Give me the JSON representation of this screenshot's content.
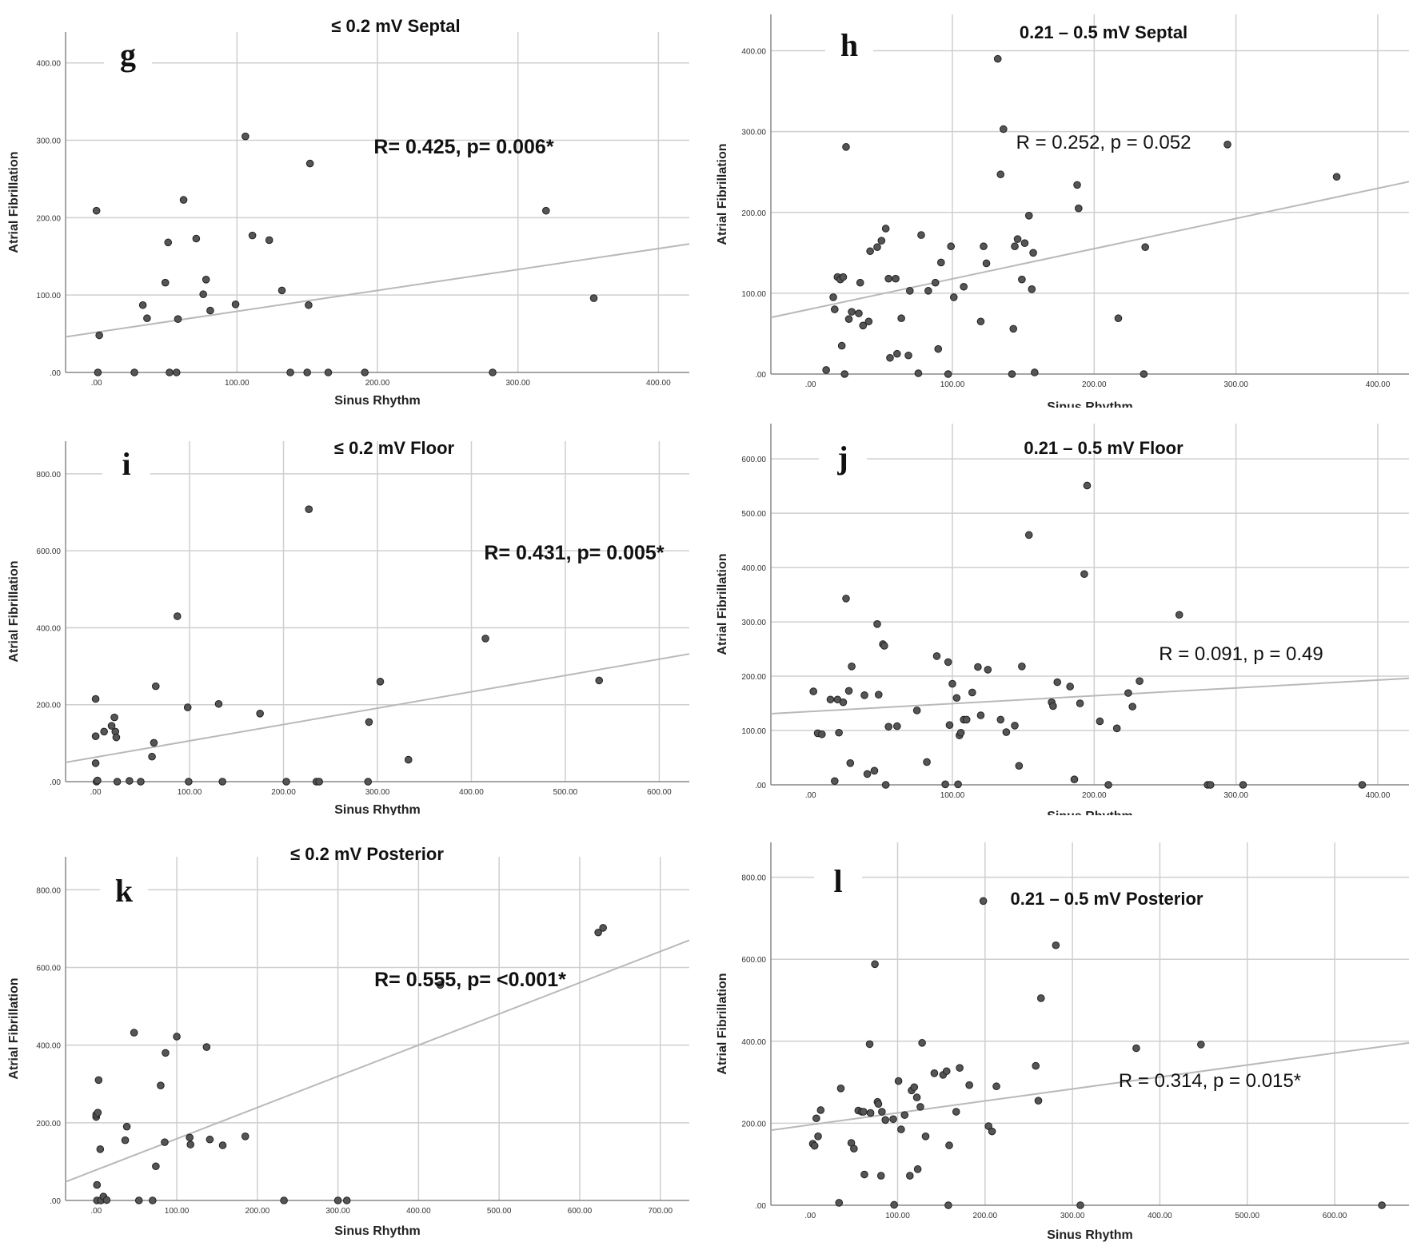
{
  "chart_data": [
    {
      "type": "scatter",
      "panel": "g",
      "title": "≤ 0.2 mV Septal",
      "xlabel": "Sinus Rhythm",
      "ylabel": "Atrial Fibrillation",
      "annotation": "R= 0.425, p= 0.006*",
      "xlim": [
        -22,
        422
      ],
      "ylim": [
        0,
        440
      ],
      "xticks": [
        0,
        100,
        200,
        300,
        400
      ],
      "yticks": [
        0,
        100,
        200,
        300,
        400
      ],
      "xtick_labels": [
        ".00",
        "100.00",
        "200.00",
        "300.00",
        "400.00"
      ],
      "ytick_labels": [
        ".00",
        "100.00",
        "200.00",
        "300.00",
        "400.00"
      ],
      "fit": {
        "x": [
          -22,
          422
        ],
        "y": [
          46,
          166
        ]
      },
      "x": [
        0,
        1,
        2,
        27,
        33,
        36,
        49,
        51,
        52,
        57,
        58,
        62,
        71,
        76,
        78,
        81,
        99,
        106,
        111,
        123,
        132,
        138,
        150,
        151,
        152,
        165,
        191,
        282,
        320,
        354
      ],
      "y": [
        209,
        0,
        48,
        0,
        87,
        70,
        116,
        168,
        0,
        0,
        69,
        223,
        173,
        101,
        120,
        80,
        88,
        305,
        177,
        171,
        106,
        0,
        0,
        87,
        270,
        0,
        0,
        0,
        209,
        96
      ]
    },
    {
      "type": "scatter",
      "panel": "h",
      "title": "0.21 – 0.5 mV Septal",
      "xlabel": "Sinus Rhythm",
      "ylabel": "Atrial Fibrillation",
      "annotation": "R = 0.252, p = 0.052",
      "xlim": [
        -28,
        422
      ],
      "ylim": [
        0,
        445
      ],
      "xticks": [
        0,
        100,
        200,
        300,
        400
      ],
      "yticks": [
        0,
        100,
        200,
        300,
        400
      ],
      "xtick_labels": [
        ".00",
        "100.00",
        "200.00",
        "300.00",
        "400.00"
      ],
      "ytick_labels": [
        ".00",
        "100.00",
        "200.00",
        "300.00",
        "400.00"
      ],
      "fit": {
        "x": [
          -28,
          422
        ],
        "y": [
          70,
          238
        ]
      },
      "x": [
        11,
        16,
        17,
        19,
        21,
        22,
        23,
        24,
        25,
        27,
        29,
        34,
        35,
        37,
        41,
        42,
        47,
        50,
        53,
        55,
        56,
        60,
        61,
        64,
        69,
        70,
        76,
        78,
        83,
        88,
        90,
        92,
        97,
        99,
        101,
        108,
        120,
        122,
        124,
        132,
        134,
        136,
        142,
        143,
        144,
        146,
        149,
        151,
        154,
        156,
        157,
        158,
        188,
        189,
        217,
        235,
        236,
        294,
        371
      ],
      "y": [
        5,
        95,
        80,
        120,
        117,
        35,
        120,
        0,
        281,
        68,
        77,
        75,
        113,
        60,
        65,
        152,
        157,
        165,
        180,
        118,
        20,
        118,
        25,
        69,
        23,
        103,
        1,
        172,
        103,
        113,
        31,
        138,
        0,
        158,
        95,
        108,
        65,
        158,
        137,
        390,
        247,
        303,
        0,
        56,
        158,
        167,
        117,
        162,
        196,
        105,
        150,
        2,
        234,
        205,
        69,
        0,
        157,
        284,
        244
      ]
    },
    {
      "type": "scatter",
      "panel": "i",
      "title": "≤ 0.2 mV Floor",
      "xlabel": "Sinus Rhythm",
      "ylabel": "Atrial Fibrillation",
      "annotation": "R= 0.431, p= 0.005*",
      "xlim": [
        -32,
        632
      ],
      "ylim": [
        0,
        885
      ],
      "xticks": [
        0,
        100,
        200,
        300,
        400,
        500,
        600
      ],
      "yticks": [
        0,
        200,
        400,
        600,
        800
      ],
      "xtick_labels": [
        ".00",
        "100.00",
        "200.00",
        "300.00",
        "400.00",
        "500.00",
        "600.00"
      ],
      "ytick_labels": [
        ".00",
        "200.00",
        "400.00",
        "600.00",
        "800.00"
      ],
      "fit": {
        "x": [
          -32,
          632
        ],
        "y": [
          50,
          332
        ]
      },
      "x": [
        0,
        0,
        0,
        1,
        2,
        9,
        17,
        20,
        21,
        22,
        23,
        36,
        48,
        60,
        62,
        64,
        87,
        98,
        99,
        131,
        135,
        175,
        203,
        227,
        235,
        238,
        290,
        291,
        303,
        333,
        415,
        536
      ],
      "y": [
        215,
        118,
        48,
        0,
        3,
        130,
        145,
        167,
        130,
        115,
        0,
        2,
        0,
        65,
        101,
        248,
        430,
        193,
        0,
        202,
        0,
        177,
        0,
        708,
        0,
        0,
        0,
        155,
        260,
        57,
        372,
        263
      ]
    },
    {
      "type": "scatter",
      "panel": "j",
      "title": "0.21 – 0.5 mV Floor",
      "xlabel": "Sinus Rhythm",
      "ylabel": "Atrial Fibrillation",
      "annotation": "R = 0.091, p = 0.49",
      "xlim": [
        -28,
        422
      ],
      "ylim": [
        0,
        665
      ],
      "xticks": [
        0,
        100,
        200,
        300,
        400
      ],
      "yticks": [
        0,
        100,
        200,
        300,
        400,
        500,
        600
      ],
      "xtick_labels": [
        ".00",
        "100.00",
        "200.00",
        "300.00",
        "400.00"
      ],
      "ytick_labels": [
        ".00",
        "100.00",
        "200.00",
        "300.00",
        "400.00",
        "500.00",
        "600.00"
      ],
      "fit": {
        "x": [
          -28,
          422
        ],
        "y": [
          131,
          196
        ]
      },
      "x": [
        2,
        5,
        8,
        14,
        17,
        19,
        20,
        23,
        25,
        27,
        28,
        29,
        38,
        40,
        45,
        47,
        48,
        51,
        52,
        53,
        55,
        61,
        75,
        82,
        89,
        95,
        97,
        98,
        100,
        103,
        104,
        105,
        106,
        108,
        110,
        114,
        118,
        120,
        125,
        134,
        138,
        144,
        147,
        149,
        154,
        170,
        171,
        174,
        183,
        186,
        190,
        193,
        195,
        204,
        210,
        216,
        224,
        227,
        232,
        260,
        280,
        282,
        305,
        389
      ],
      "y": [
        172,
        95,
        93,
        157,
        7,
        157,
        96,
        152,
        343,
        173,
        40,
        218,
        165,
        20,
        26,
        296,
        166,
        259,
        256,
        0,
        107,
        108,
        137,
        42,
        237,
        1,
        226,
        110,
        186,
        160,
        1,
        91,
        96,
        120,
        120,
        170,
        217,
        128,
        212,
        120,
        97,
        109,
        35,
        218,
        460,
        152,
        145,
        189,
        181,
        10,
        150,
        388,
        551,
        117,
        0,
        104,
        169,
        144,
        191,
        313,
        0,
        0,
        0,
        0
      ]
    },
    {
      "type": "scatter",
      "panel": "k",
      "title": "≤ 0.2 mV Posterior",
      "xlabel": "Sinus Rhythm",
      "ylabel": "Atrial Fibrillation",
      "annotation": "R= 0.555, p= <0.001*",
      "xlim": [
        -38,
        736
      ],
      "ylim": [
        0,
        885
      ],
      "xticks": [
        0,
        100,
        200,
        300,
        400,
        500,
        600,
        700
      ],
      "yticks": [
        0,
        200,
        400,
        600,
        800
      ],
      "xtick_labels": [
        ".00",
        "100.00",
        "200.00",
        "300.00",
        "400.00",
        "500.00",
        "600.00",
        "700.00"
      ],
      "ytick_labels": [
        ".00",
        "200.00",
        "400.00",
        "600.00",
        "800.00"
      ],
      "fit": {
        "x": [
          -38,
          736
        ],
        "y": [
          48,
          670
        ]
      },
      "x": [
        0,
        0,
        1,
        1,
        2,
        3,
        5,
        6,
        9,
        13,
        36,
        38,
        47,
        53,
        70,
        74,
        80,
        85,
        86,
        100,
        116,
        117,
        137,
        141,
        157,
        185,
        233,
        300,
        311,
        427,
        623,
        629
      ],
      "y": [
        215,
        221,
        0,
        40,
        226,
        310,
        132,
        0,
        10,
        1,
        155,
        190,
        432,
        0,
        0,
        88,
        296,
        150,
        380,
        422,
        162,
        144,
        395,
        157,
        142,
        165,
        0,
        0,
        0,
        555,
        690,
        702
      ]
    },
    {
      "type": "scatter",
      "panel": "l",
      "title": "0.21 – 0.5 mV Posterior",
      "xlabel": "Sinus Rhythm",
      "ylabel": "Atrial Fibrillation",
      "annotation": "R = 0.314, p = 0.015*",
      "xlim": [
        -45,
        685
      ],
      "ylim": [
        0,
        885
      ],
      "xticks": [
        0,
        100,
        200,
        300,
        400,
        500,
        600
      ],
      "yticks": [
        0,
        200,
        400,
        600,
        800
      ],
      "xtick_labels": [
        ".00",
        "100.00",
        "200.00",
        "300.00",
        "400.00",
        "500.00",
        "600.00"
      ],
      "ytick_labels": [
        ".00",
        "200.00",
        "400.00",
        "600.00",
        "800.00"
      ],
      "fit": {
        "x": [
          -45,
          685
        ],
        "y": [
          183,
          396
        ]
      },
      "x": [
        3,
        5,
        7,
        9,
        12,
        33,
        35,
        47,
        50,
        55,
        59,
        61,
        62,
        68,
        69,
        74,
        77,
        78,
        81,
        82,
        86,
        95,
        96,
        101,
        104,
        108,
        114,
        116,
        119,
        122,
        123,
        126,
        128,
        132,
        142,
        152,
        156,
        158,
        159,
        167,
        171,
        182,
        198,
        204,
        208,
        213,
        258,
        261,
        264,
        281,
        309,
        373,
        447,
        654
      ],
      "y": [
        150,
        145,
        212,
        168,
        232,
        6,
        285,
        152,
        138,
        231,
        228,
        228,
        75,
        393,
        225,
        588,
        252,
        247,
        72,
        228,
        208,
        210,
        1,
        303,
        185,
        220,
        72,
        280,
        288,
        263,
        88,
        240,
        396,
        168,
        322,
        318,
        327,
        0,
        146,
        228,
        335,
        293,
        742,
        193,
        180,
        290,
        340,
        255,
        505,
        634,
        0,
        383,
        392,
        0
      ]
    }
  ]
}
